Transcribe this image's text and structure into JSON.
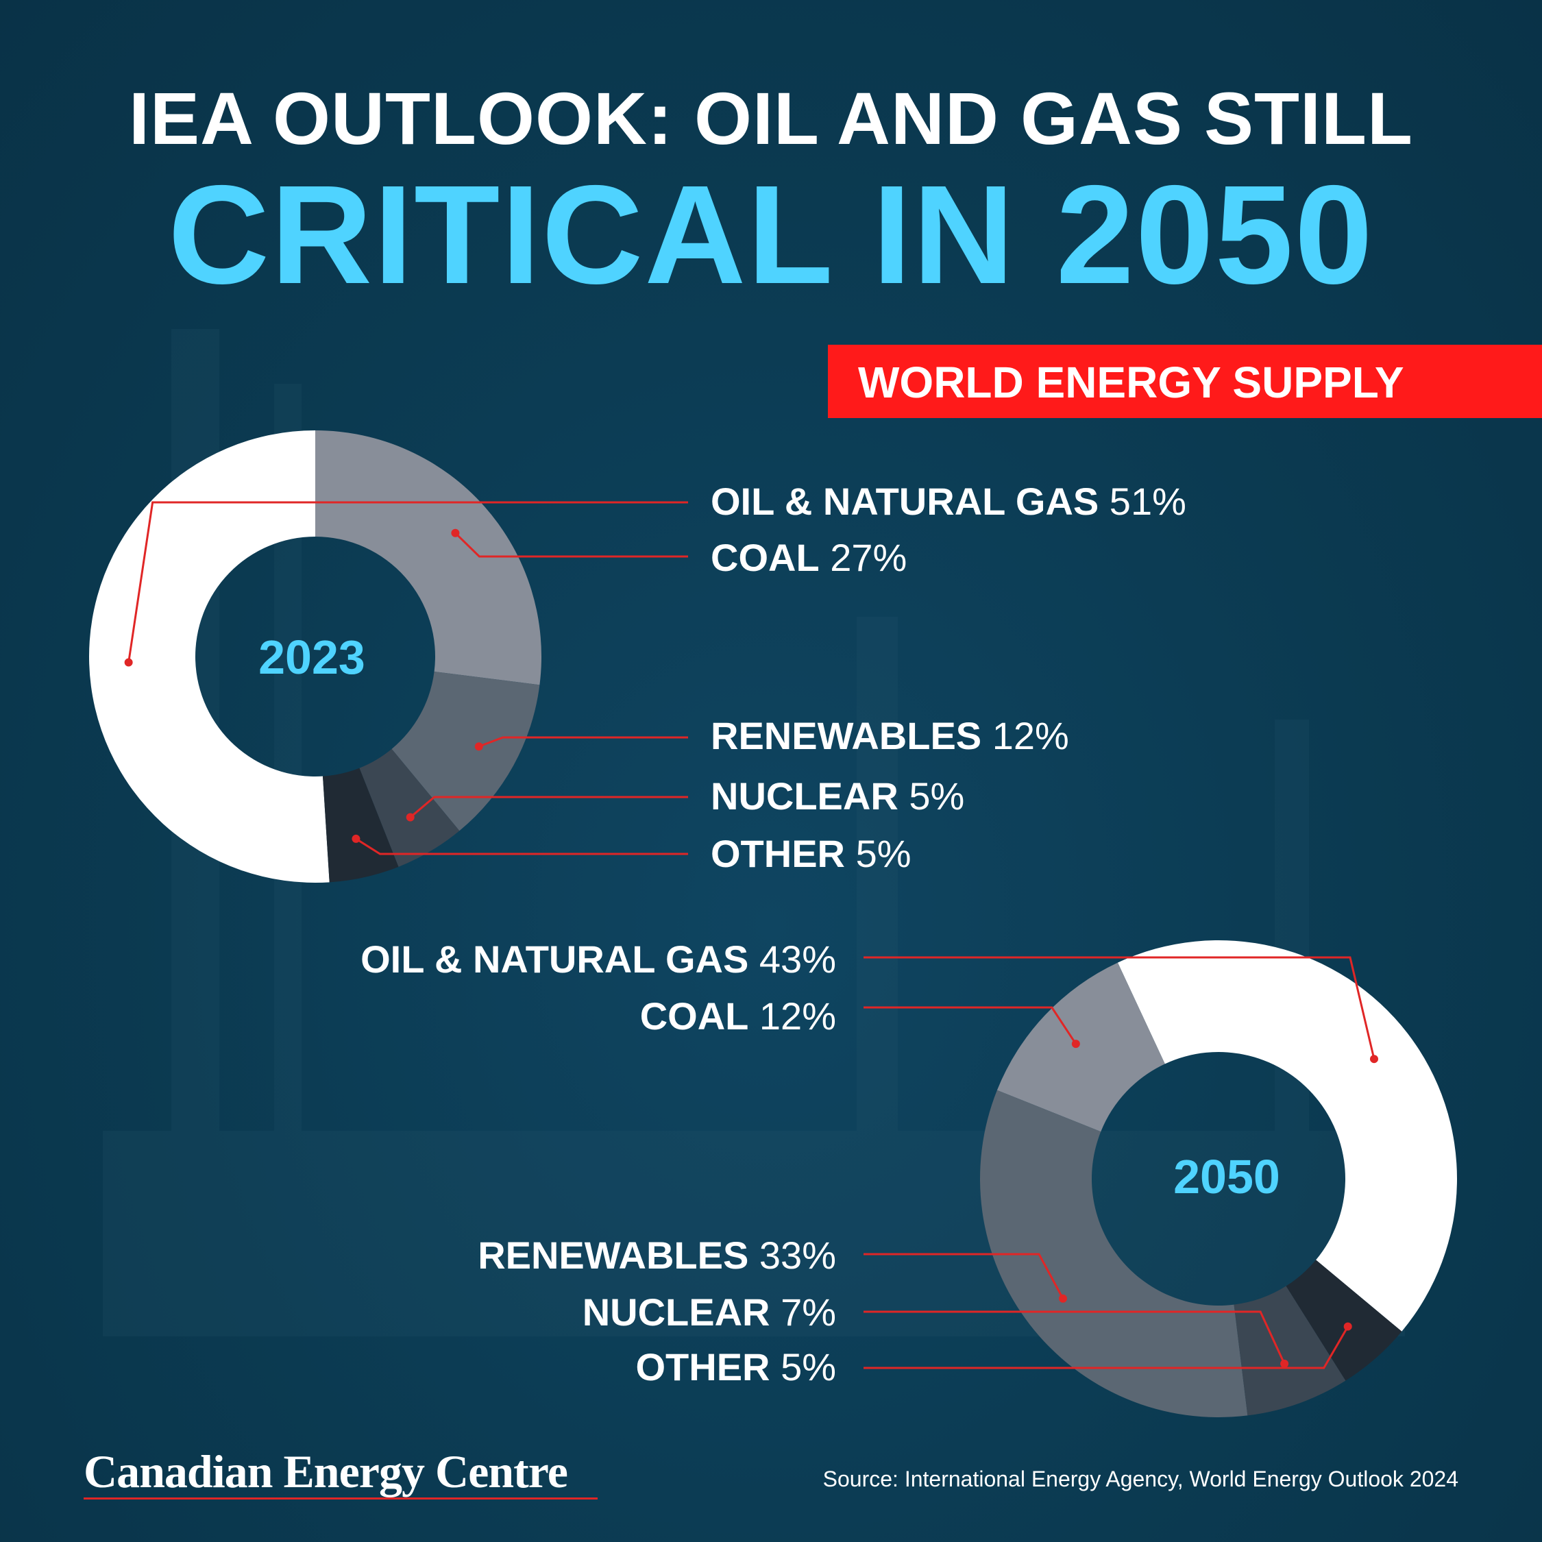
{
  "title": {
    "line1": "IEA OUTLOOK:  OIL AND GAS STILL",
    "line2": "CRITICAL IN 2050"
  },
  "banner": "WORLD ENERGY SUPPLY",
  "brand": "Canadian Energy Centre",
  "source": "Source: International Energy Agency, World Energy Outlook 2024",
  "colors": {
    "background": "#0c3a52",
    "title_accent": "#4fd3ff",
    "banner": "#ff1a1a",
    "leader_line": "#e02626",
    "oil_gas": "#ffffff",
    "coal": "#888e99",
    "renewables": "#5b6773",
    "nuclear": "#3b4753",
    "other": "#202a34"
  },
  "chart_data": [
    {
      "type": "pie",
      "title": "2023",
      "categories": [
        "OIL & NATURAL GAS",
        "COAL",
        "RENEWABLES",
        "NUCLEAR",
        "OTHER"
      ],
      "values": [
        51,
        27,
        12,
        5,
        5
      ],
      "value_labels": [
        "51%",
        "27%",
        "12%",
        "5%",
        "5%"
      ]
    },
    {
      "type": "pie",
      "title": "2050",
      "categories": [
        "OIL & NATURAL GAS",
        "COAL",
        "RENEWABLES",
        "NUCLEAR",
        "OTHER"
      ],
      "values": [
        43,
        12,
        33,
        7,
        5
      ],
      "value_labels": [
        "43%",
        "12%",
        "33%",
        "7%",
        "5%"
      ]
    }
  ]
}
